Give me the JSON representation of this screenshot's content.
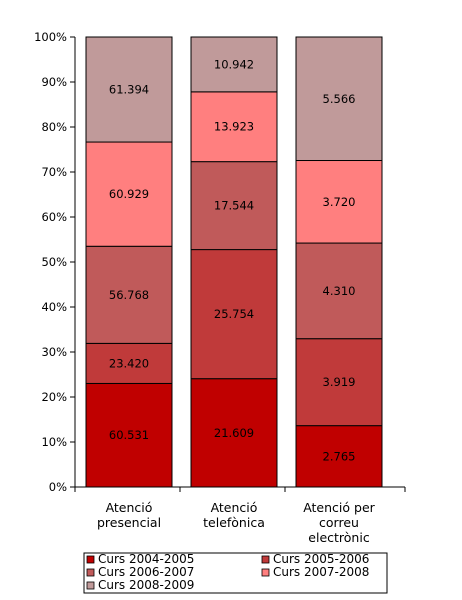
{
  "chart_data": {
    "type": "bar",
    "stacked": "percent",
    "categories": [
      [
        "Atenció",
        "presencial"
      ],
      [
        "Atenció",
        "telefònica"
      ],
      [
        "Atenció per",
        "correu",
        "electrònic"
      ]
    ],
    "series": [
      {
        "name": "Curs 2004-2005",
        "color": "#c00000",
        "values": [
          60531,
          21609,
          2765
        ],
        "labels": [
          "60.531",
          "21.609",
          "2.765"
        ]
      },
      {
        "name": "Curs 2005-2006",
        "color": "#c03a3a",
        "values": [
          23420,
          25754,
          3919
        ],
        "labels": [
          "23.420",
          "25.754",
          "3.919"
        ]
      },
      {
        "name": "Curs 2006-2007",
        "color": "#c05a5a",
        "values": [
          56768,
          17544,
          4310
        ],
        "labels": [
          "56.768",
          "17.544",
          "4.310"
        ]
      },
      {
        "name": "Curs 2007-2008",
        "color": "#ff7f7f",
        "values": [
          60929,
          13923,
          3720
        ],
        "labels": [
          "60.929",
          "13.923",
          "3.720"
        ]
      },
      {
        "name": "Curs 2008-2009",
        "color": "#c09a9a",
        "values": [
          61394,
          10942,
          5566
        ],
        "labels": [
          "61.394",
          "10.942",
          "5.566"
        ]
      }
    ],
    "y_ticks": [
      "0%",
      "10%",
      "20%",
      "30%",
      "40%",
      "50%",
      "60%",
      "70%",
      "80%",
      "90%",
      "100%"
    ],
    "ylim": [
      0,
      100
    ],
    "grid": false,
    "legend_position": "bottom"
  }
}
